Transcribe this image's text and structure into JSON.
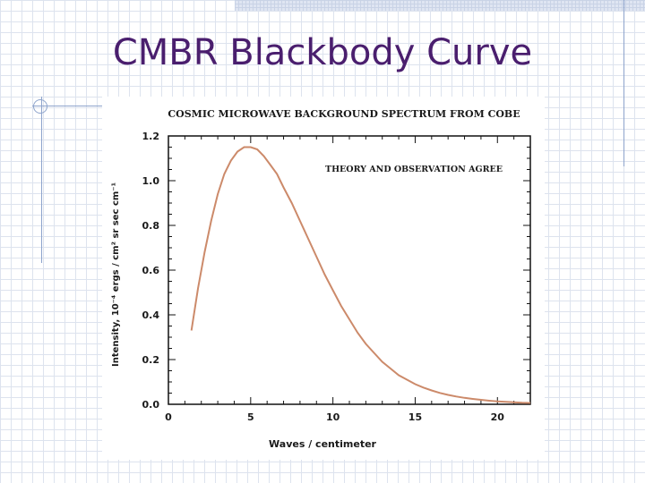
{
  "slide": {
    "title": "CMBR Blackbody Curve"
  },
  "colors": {
    "title": "#4a1e6e",
    "curve": "#cc8a6a",
    "axes": "#111111",
    "decor": "#8ea4cc"
  },
  "chart_data": {
    "type": "line",
    "title": "COSMIC MICROWAVE BACKGROUND SPECTRUM FROM COBE",
    "annotation": "THEORY AND OBSERVATION AGREE",
    "xlabel": "Waves / centimeter",
    "ylabel": "Intensity, 10⁻⁴ ergs / cm² sr sec cm⁻¹",
    "xlim": [
      0,
      22
    ],
    "ylim": [
      0,
      1.2
    ],
    "x_ticks": [
      "0",
      "5",
      "10",
      "15",
      "20"
    ],
    "y_ticks": [
      "0.0",
      "0.2",
      "0.4",
      "0.6",
      "0.8",
      "1.0",
      "1.2"
    ],
    "grid": false,
    "series": [
      {
        "x": [
          1.4,
          1.8,
          2.2,
          2.6,
          3.0,
          3.4,
          3.8,
          4.2,
          4.6,
          5.0,
          5.4,
          5.8,
          6.2,
          6.6,
          7.0,
          7.5,
          8.0,
          8.5,
          9.0,
          9.5,
          10.0,
          10.5,
          11.0,
          11.5,
          12.0,
          12.5,
          13.0,
          13.5,
          14.0,
          14.5,
          15.0,
          15.5,
          16.0,
          16.5,
          17.0,
          17.5,
          18.0,
          18.5,
          19.0,
          19.5,
          20.0,
          20.5,
          21.0,
          21.5,
          22.0
        ],
        "y": [
          0.33,
          0.52,
          0.68,
          0.82,
          0.94,
          1.03,
          1.09,
          1.13,
          1.15,
          1.15,
          1.14,
          1.11,
          1.07,
          1.03,
          0.97,
          0.9,
          0.82,
          0.74,
          0.66,
          0.58,
          0.51,
          0.44,
          0.38,
          0.32,
          0.27,
          0.23,
          0.19,
          0.16,
          0.13,
          0.11,
          0.09,
          0.075,
          0.062,
          0.051,
          0.042,
          0.035,
          0.029,
          0.024,
          0.02,
          0.016,
          0.013,
          0.011,
          0.009,
          0.007,
          0.006
        ]
      }
    ]
  }
}
